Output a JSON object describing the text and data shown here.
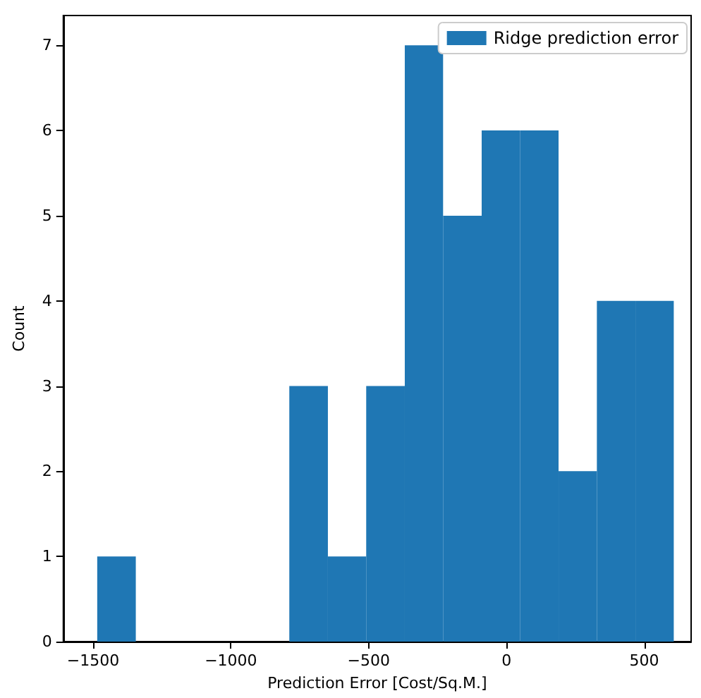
{
  "chart_data": {
    "type": "histogram",
    "xlabel": "Prediction Error [Cost/Sq.M.]",
    "ylabel": "Count",
    "bins": [
      -1485,
      -1345,
      -1206,
      -1066,
      -927,
      -788,
      -648,
      -509,
      -369,
      -230,
      -90,
      49,
      189,
      328,
      468,
      607
    ],
    "series": [
      {
        "name": "Ridge prediction error",
        "color": "#1f77b4",
        "values": [
          1,
          0,
          0,
          0,
          0,
          3,
          1,
          3,
          7,
          5,
          6,
          6,
          2,
          4,
          4
        ]
      }
    ],
    "xlim": [
      -1608,
      670
    ],
    "xticks": [
      -1500,
      -1000,
      -500,
      0,
      500
    ],
    "ylim": [
      0,
      7.35
    ],
    "yticks": [
      0,
      1,
      2,
      3,
      4,
      5,
      6,
      7
    ],
    "legend": "top right",
    "grid": false
  }
}
